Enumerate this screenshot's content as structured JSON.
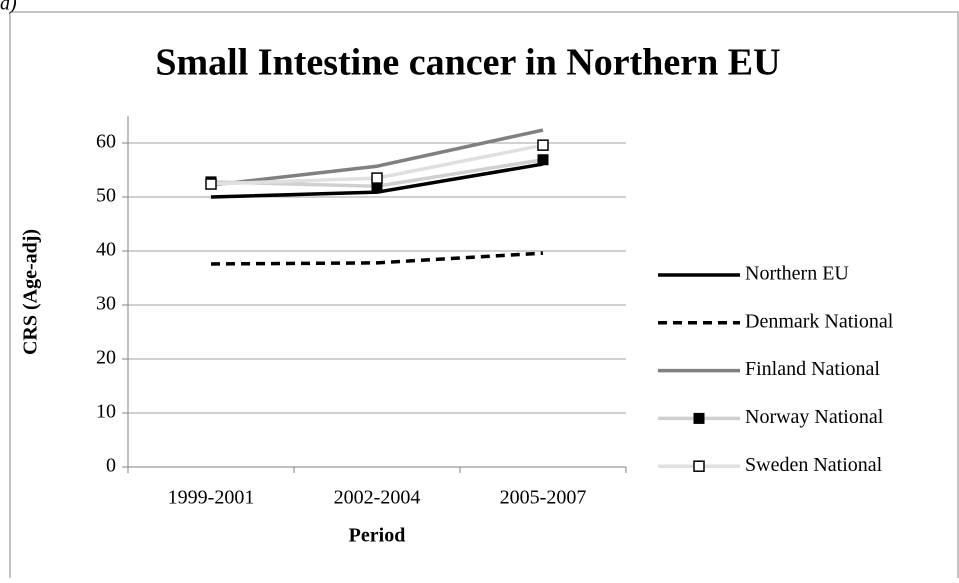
{
  "panel_label": "a)",
  "chart_data": {
    "type": "line",
    "title": "Small Intestine cancer in Northern EU",
    "x_label": "Period",
    "y_label": "CRS (Age-adj)",
    "categories": [
      "1999-2001",
      "2002-2004",
      "2005-2007"
    ],
    "ylim": [
      0,
      65
    ],
    "yticks": [
      0,
      10,
      20,
      30,
      40,
      50,
      60
    ],
    "grid": true,
    "legend": "right",
    "series": [
      {
        "name": "Northern EU",
        "color": "#000000",
        "dash": false,
        "marker": "none",
        "values": [
          50.0,
          50.9,
          56.1
        ]
      },
      {
        "name": "Denmark National",
        "color": "#000000",
        "dash": true,
        "marker": "none",
        "values": [
          37.6,
          37.8,
          39.6
        ]
      },
      {
        "name": "Finland National",
        "color": "#808080",
        "dash": false,
        "marker": "none",
        "values": [
          52.2,
          55.7,
          62.4
        ]
      },
      {
        "name": "Norway National",
        "color": "#d0d0d0",
        "dash": false,
        "marker": "filled-square",
        "values": [
          52.8,
          52.0,
          56.9
        ]
      },
      {
        "name": "Sweden National",
        "color": "#e0e0e0",
        "dash": false,
        "marker": "open-square",
        "values": [
          52.4,
          53.5,
          59.6
        ]
      }
    ]
  }
}
